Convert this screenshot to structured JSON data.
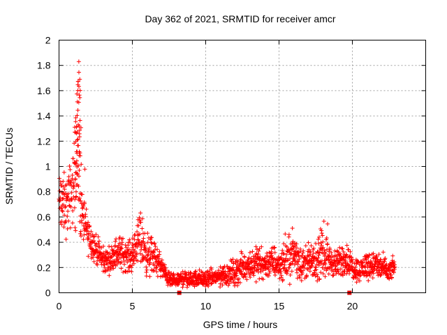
{
  "chart_data": {
    "type": "scatter",
    "title": "Day 362 of 2021, SRMTID for receiver amcr",
    "xlabel": "GPS time / hours",
    "ylabel": "SRMTID / TECUs",
    "xlim": [
      0,
      25
    ],
    "ylim": [
      0,
      2
    ],
    "x_ticks": [
      0,
      5,
      10,
      15,
      20
    ],
    "x_tick_labels": [
      "0",
      "5",
      "10",
      "15",
      "20"
    ],
    "y_ticks": [
      0,
      0.2,
      0.4,
      0.6,
      0.8,
      1,
      1.2,
      1.4,
      1.6,
      1.8,
      2
    ],
    "y_tick_labels": [
      "0",
      "0.2",
      "0.4",
      "0.6",
      "0.8",
      "1",
      "1.2",
      "1.4",
      "1.6",
      "1.8",
      "2"
    ],
    "grid": true,
    "marker": "+",
    "color": "#ff0000",
    "gap_markers_x": [
      8.2,
      19.8
    ],
    "envelope": {
      "description_hours": [
        0,
        0.5,
        1.0,
        1.3,
        1.6,
        2.0,
        2.5,
        3.0,
        3.5,
        4.0,
        4.5,
        5.0,
        5.5,
        6.0,
        6.5,
        7.0,
        7.5,
        8.0,
        8.5,
        9.0,
        9.5,
        10.0,
        10.5,
        11.0,
        11.5,
        12.0,
        12.5,
        13.0,
        13.5,
        14.0,
        14.5,
        15.0,
        15.5,
        16.0,
        16.5,
        17.0,
        17.5,
        18.0,
        18.5,
        19.0,
        19.5,
        20.0,
        20.5,
        21.0,
        21.5,
        22.0,
        22.5,
        22.9
      ],
      "mean": [
        0.72,
        0.68,
        0.85,
        1.05,
        0.6,
        0.45,
        0.35,
        0.25,
        0.26,
        0.32,
        0.3,
        0.28,
        0.45,
        0.3,
        0.28,
        0.2,
        0.1,
        0.09,
        0.12,
        0.1,
        0.12,
        0.1,
        0.12,
        0.13,
        0.15,
        0.16,
        0.2,
        0.22,
        0.24,
        0.22,
        0.25,
        0.22,
        0.25,
        0.32,
        0.22,
        0.25,
        0.22,
        0.32,
        0.25,
        0.22,
        0.28,
        0.2,
        0.18,
        0.22,
        0.22,
        0.2,
        0.16,
        0.22
      ],
      "spread": [
        0.18,
        0.17,
        0.2,
        0.4,
        0.15,
        0.1,
        0.08,
        0.07,
        0.07,
        0.1,
        0.09,
        0.08,
        0.15,
        0.12,
        0.1,
        0.06,
        0.04,
        0.03,
        0.05,
        0.04,
        0.05,
        0.04,
        0.05,
        0.06,
        0.07,
        0.07,
        0.08,
        0.08,
        0.09,
        0.08,
        0.09,
        0.08,
        0.1,
        0.14,
        0.08,
        0.09,
        0.08,
        0.14,
        0.08,
        0.08,
        0.1,
        0.07,
        0.06,
        0.08,
        0.08,
        0.07,
        0.06,
        0.05
      ]
    },
    "peak": {
      "x": 1.35,
      "y": 1.83
    }
  }
}
